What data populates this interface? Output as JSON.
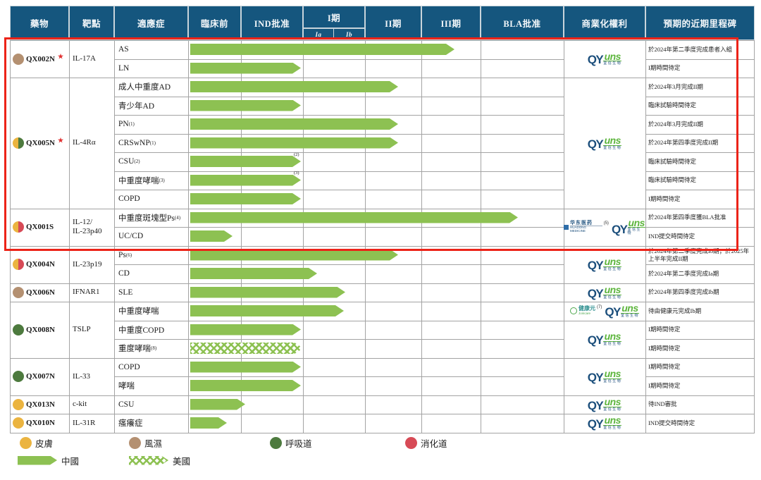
{
  "header": {
    "drug": "藥物",
    "target": "靶點",
    "indication": "適應症",
    "preclinical": "臨床前",
    "ind_approval": "IND批准",
    "phase1": "I期",
    "phase2": "II期",
    "phase3": "III期",
    "bla": "BLA批准",
    "commercial": "商業化權利",
    "milestone": "預期的近期里程碑"
  },
  "colors": {
    "header_bg": "#15567E",
    "grid": "#A3A3A3",
    "bar_green": "#8DC152",
    "red_box": "#EC2318",
    "star": "#E03030",
    "skin": "#EBB440",
    "rheum": "#B49071",
    "resp": "#4D7A3E",
    "digest": "#D74A56",
    "qy_navy": "#1C4F7C",
    "qy_green": "#5CB53C",
    "huadong_blue": "#2E6DA8",
    "joincare_green": "#4CA84C"
  },
  "logos": {
    "qyuns": {
      "qy": "QY",
      "uns": "uns",
      "sub": "荃信生物"
    },
    "huadong": {
      "name": "华东医药",
      "sub": "HUADONG MEDICINE"
    },
    "joincare": {
      "name": "健康元",
      "sub": "Joincare"
    }
  },
  "highlight_box": {
    "note": "red emphasis box around QX002N, QX005N and QX001S rows",
    "color": "#EC2318"
  },
  "legend": {
    "categories": [
      {
        "label": "皮膚",
        "color": "skin"
      },
      {
        "label": "風濕",
        "color": "rheum"
      },
      {
        "label": "呼吸道",
        "color": "resp"
      },
      {
        "label": "消化道",
        "color": "digest"
      }
    ],
    "regions": [
      {
        "label": "中國",
        "style": "solid"
      },
      {
        "label": "美國",
        "style": "hatched"
      }
    ]
  },
  "chart_data": {
    "type": "gantt-table",
    "stage_columns": [
      "臨床前",
      "IND批准",
      "I期",
      "II期",
      "III期",
      "BLA批准"
    ],
    "phase1_sub": [
      "Ia",
      "Ib"
    ],
    "groups": [
      {
        "drug": "QX002N",
        "star": true,
        "dots": [
          "rheum"
        ],
        "target": "IL-17A",
        "commercial": [
          {
            "rows": [
              0,
              1
            ],
            "logos": [
              {
                "logo": "qyuns"
              }
            ]
          }
        ],
        "rows": [
          {
            "indication": "AS",
            "sup": "",
            "bar_end": 645,
            "stage": "III期",
            "region": "中國",
            "milestone": "於2024年第二季度完成患者入組"
          },
          {
            "indication": "LN",
            "sup": "",
            "bar_end": 427,
            "stage": "IND批准",
            "region": "中國",
            "milestone": "I期時間待定"
          }
        ]
      },
      {
        "drug": "QX005N",
        "star": true,
        "dots": [
          "skin",
          "resp"
        ],
        "target": "IL-4Rα",
        "commercial": [
          {
            "rows": [
              0,
              1,
              2,
              3,
              4,
              5,
              6
            ],
            "logos": [
              {
                "logo": "qyuns"
              }
            ]
          }
        ],
        "rows": [
          {
            "indication": "成人中重度AD",
            "sup": "",
            "bar_end": 565,
            "stage": "II期",
            "region": "中國",
            "milestone": "於2024年3月完成II期"
          },
          {
            "indication": "青少年AD",
            "sup": "",
            "bar_end": 427,
            "stage": "IND批准",
            "region": "中國",
            "milestone": "臨床試驗時間待定"
          },
          {
            "indication": "PN",
            "sup": "(1)",
            "bar_end": 565,
            "stage": "II期",
            "region": "中國",
            "milestone": "於2024年3月完成II期"
          },
          {
            "indication": "CRSwNP",
            "sup": "(1)",
            "bar_end": 565,
            "stage": "II期",
            "region": "中國",
            "milestone": "於2024年第四季度完成II期"
          },
          {
            "indication": "CSU",
            "sup": "(2)",
            "bar_end": 427,
            "tip_sup": "(2)",
            "stage": "IND批准",
            "region": "中國",
            "milestone": "臨床試驗時間待定"
          },
          {
            "indication": "中重度哮喘",
            "sup": "(3)",
            "bar_end": 427,
            "tip_sup": "(3)",
            "stage": "IND批准",
            "region": "中國",
            "milestone": "臨床試驗時間待定"
          },
          {
            "indication": "COPD",
            "sup": "",
            "bar_end": 427,
            "stage": "IND批准",
            "region": "中國",
            "milestone": "I期時間待定"
          }
        ]
      },
      {
        "drug": "QX001S",
        "star": false,
        "dots": [
          "skin",
          "digest"
        ],
        "target": "IL-12/\nIL-23p40",
        "commercial": [
          {
            "rows": [
              0,
              1
            ],
            "logos": [
              {
                "logo": "huadong",
                "sup": "(5)"
              },
              {
                "logo": "qyuns"
              }
            ]
          }
        ],
        "rows": [
          {
            "indication": "中重度斑塊型Ps",
            "sup": "(4)",
            "bar_end": 735,
            "stage": "BLA批准",
            "region": "中國",
            "milestone": "於2024年第四季度獲BLA批准"
          },
          {
            "indication": "UC/CD",
            "sup": "",
            "bar_end": 330,
            "stage": "臨床前",
            "region": "中國",
            "milestone": "IND提交時間待定"
          }
        ]
      },
      {
        "drug": "QX004N",
        "star": false,
        "dots": [
          "skin",
          "digest"
        ],
        "target": "IL-23p19",
        "commercial": [
          {
            "rows": [
              0,
              1
            ],
            "logos": [
              {
                "logo": "qyuns"
              }
            ]
          }
        ],
        "rows": [
          {
            "indication": "Ps",
            "sup": "(6)",
            "bar_end": 565,
            "stage": "II期",
            "region": "中國",
            "milestone": "於2024年第二季度完成Ib期；於2025年上半年完成II期"
          },
          {
            "indication": "CD",
            "sup": "",
            "bar_end": 450,
            "stage": "I期Ia",
            "region": "中國",
            "milestone": "於2024年第二季度完成Ia期"
          }
        ]
      },
      {
        "drug": "QX006N",
        "star": false,
        "dots": [
          "rheum"
        ],
        "target": "IFNAR1",
        "commercial": [
          {
            "rows": [
              0
            ],
            "logos": [
              {
                "logo": "qyuns"
              }
            ]
          }
        ],
        "rows": [
          {
            "indication": "SLE",
            "sup": "",
            "bar_end": 490,
            "stage": "I期Ib",
            "region": "中國",
            "milestone": "於2024年第四季度完成Ib期"
          }
        ]
      },
      {
        "drug": "QX008N",
        "star": false,
        "dots": [
          "resp"
        ],
        "target": "TSLP",
        "commercial": [
          {
            "rows": [
              0
            ],
            "logos": [
              {
                "logo": "joincare",
                "sup": "(7)"
              },
              {
                "logo": "qyuns"
              }
            ]
          },
          {
            "rows": [
              1,
              2
            ],
            "logos": [
              {
                "logo": "qyuns"
              }
            ]
          }
        ],
        "rows": [
          {
            "indication": "中重度哮喘",
            "sup": "",
            "bar_end": 488,
            "stage": "I期Ib",
            "region": "中國",
            "milestone": "待由健康元完成Ib期"
          },
          {
            "indication": "中重度COPD",
            "sup": "",
            "bar_end": 427,
            "stage": "IND批准",
            "region": "中國",
            "milestone": "I期時間待定"
          },
          {
            "indication": "重度哮喘",
            "sup": "(8)",
            "bar_end": 430,
            "stage": "IND批准",
            "region": "美國",
            "milestone": "I期時間待定"
          }
        ]
      },
      {
        "drug": "QX007N",
        "star": false,
        "dots": [
          "resp"
        ],
        "target": "IL-33",
        "commercial": [
          {
            "rows": [
              0,
              1
            ],
            "logos": [
              {
                "logo": "qyuns"
              }
            ]
          }
        ],
        "rows": [
          {
            "indication": "COPD",
            "sup": "",
            "bar_end": 427,
            "stage": "IND批准",
            "region": "中國",
            "milestone": "I期時間待定"
          },
          {
            "indication": "哮喘",
            "sup": "",
            "bar_end": 427,
            "stage": "IND批准",
            "region": "中國",
            "milestone": "I期時間待定"
          }
        ]
      },
      {
        "drug": "QX013N",
        "star": false,
        "dots": [
          "skin"
        ],
        "target": "c-kit",
        "commercial": [
          {
            "rows": [
              0
            ],
            "logos": [
              {
                "logo": "qyuns"
              }
            ]
          }
        ],
        "rows": [
          {
            "indication": "CSU",
            "sup": "",
            "bar_end": 348,
            "stage": "臨床前",
            "region": "中國",
            "milestone": "待IND審批"
          }
        ]
      },
      {
        "drug": "QX010N",
        "star": false,
        "dots": [
          "skin"
        ],
        "target": "IL-31R",
        "commercial": [
          {
            "rows": [
              0
            ],
            "logos": [
              {
                "logo": "qyuns"
              }
            ]
          }
        ],
        "rows": [
          {
            "indication": "瘙癢症",
            "sup": "",
            "bar_end": 322,
            "stage": "臨床前",
            "region": "中國",
            "milestone": "IND提交時間待定"
          }
        ]
      }
    ]
  }
}
